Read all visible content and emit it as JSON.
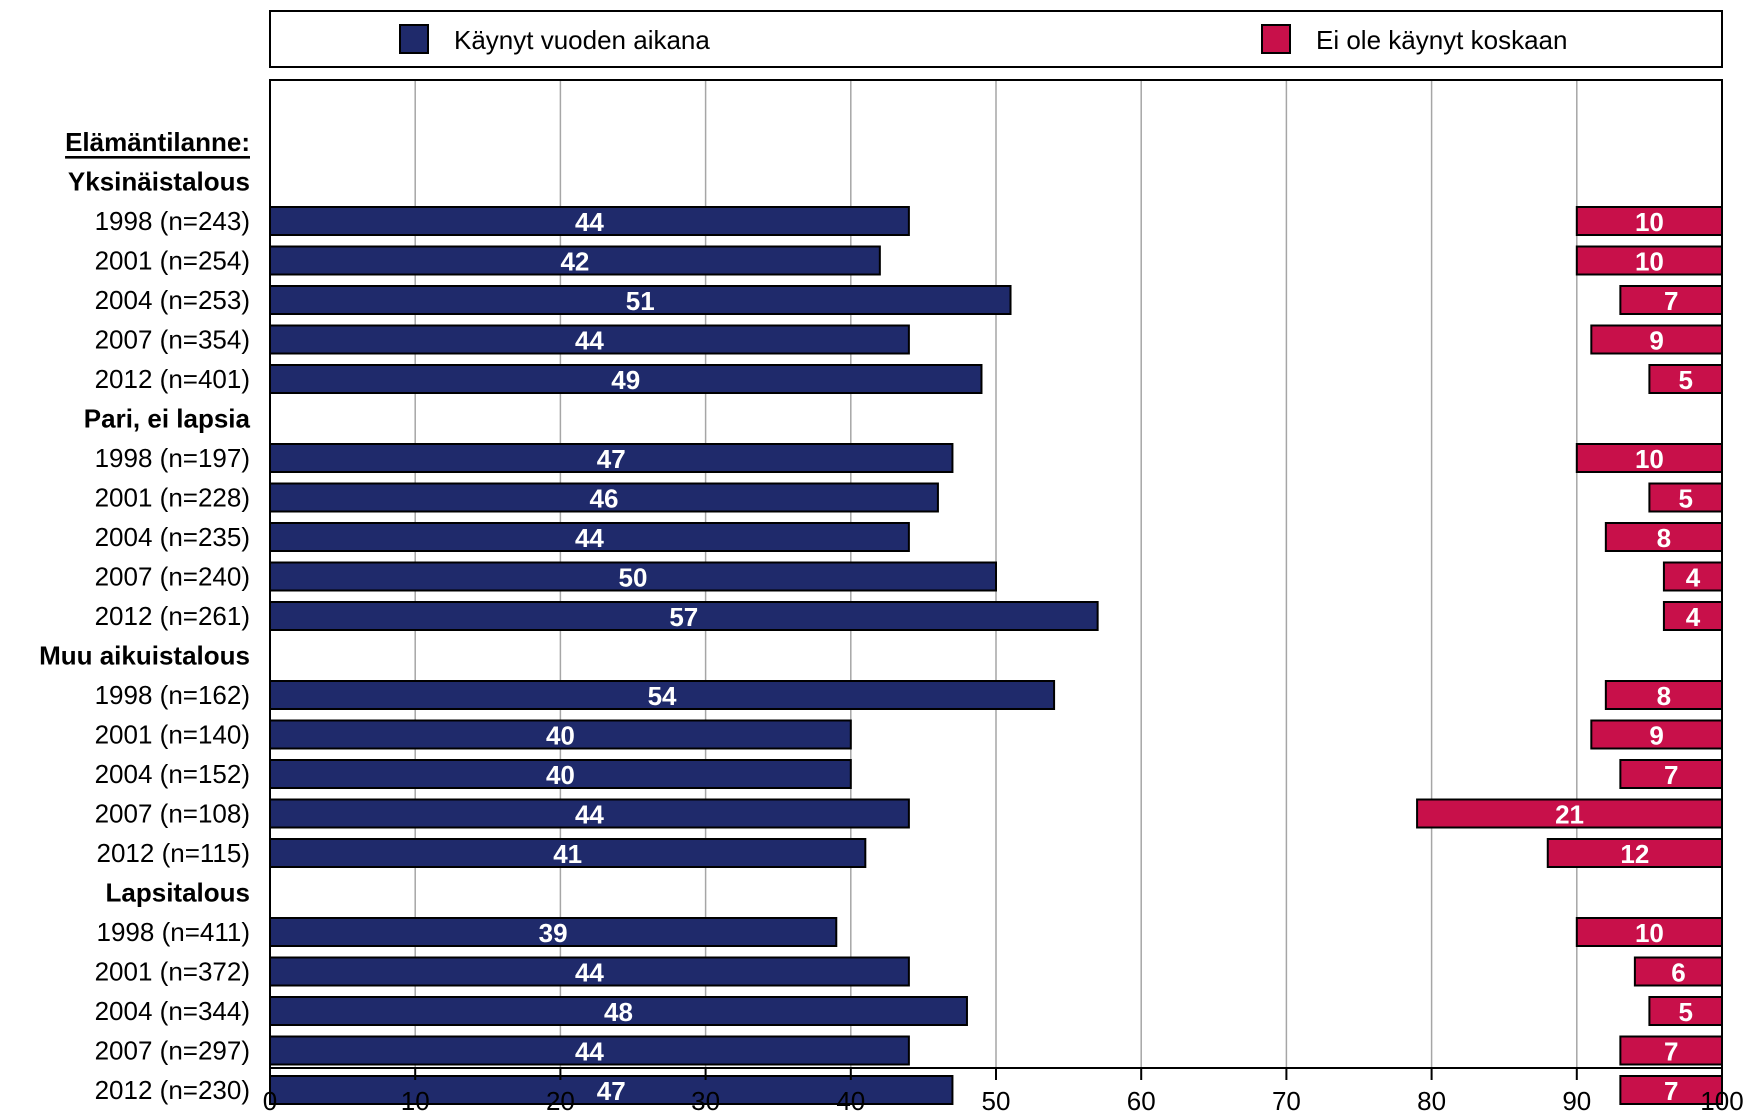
{
  "chart_data": {
    "type": "bar",
    "orientation": "horizontal",
    "layout": "diverging-from-both-ends",
    "heading": "Elämäntilanne:",
    "xlim": [
      0,
      100
    ],
    "xticks": [
      0,
      10,
      20,
      30,
      40,
      50,
      60,
      70,
      80,
      90,
      100
    ],
    "grid": true,
    "legend_position": "top",
    "series": [
      {
        "name": "Käynyt vuoden aikana",
        "color": "#1f2a6b",
        "anchor": "left"
      },
      {
        "name": "Ei ole käynyt koskaan",
        "color": "#c8104a",
        "anchor": "right"
      }
    ],
    "groups": [
      {
        "name": "Yksinäistalous",
        "rows": [
          {
            "label": "1998 (n=243)",
            "values": [
              44,
              10
            ]
          },
          {
            "label": "2001 (n=254)",
            "values": [
              42,
              10
            ]
          },
          {
            "label": "2004 (n=253)",
            "values": [
              51,
              7
            ]
          },
          {
            "label": "2007 (n=354)",
            "values": [
              44,
              9
            ]
          },
          {
            "label": "2012 (n=401)",
            "values": [
              49,
              5
            ]
          }
        ]
      },
      {
        "name": "Pari, ei lapsia",
        "rows": [
          {
            "label": "1998 (n=197)",
            "values": [
              47,
              10
            ]
          },
          {
            "label": "2001 (n=228)",
            "values": [
              46,
              5
            ]
          },
          {
            "label": "2004 (n=235)",
            "values": [
              44,
              8
            ]
          },
          {
            "label": "2007 (n=240)",
            "values": [
              50,
              4
            ]
          },
          {
            "label": "2012 (n=261)",
            "values": [
              57,
              4
            ]
          }
        ]
      },
      {
        "name": "Muu aikuistalous",
        "rows": [
          {
            "label": "1998 (n=162)",
            "values": [
              54,
              8
            ]
          },
          {
            "label": "2001 (n=140)",
            "values": [
              40,
              9
            ]
          },
          {
            "label": "2004 (n=152)",
            "values": [
              40,
              7
            ]
          },
          {
            "label": "2007 (n=108)",
            "values": [
              44,
              21
            ]
          },
          {
            "label": "2012 (n=115)",
            "values": [
              41,
              12
            ]
          }
        ]
      },
      {
        "name": "Lapsitalous",
        "rows": [
          {
            "label": "1998 (n=411)",
            "values": [
              39,
              10
            ]
          },
          {
            "label": "2001 (n=372)",
            "values": [
              44,
              6
            ]
          },
          {
            "label": "2004 (n=344)",
            "values": [
              48,
              5
            ]
          },
          {
            "label": "2007 (n=297)",
            "values": [
              44,
              7
            ]
          },
          {
            "label": "2012 (n=230)",
            "values": [
              47,
              7
            ]
          }
        ]
      }
    ]
  }
}
